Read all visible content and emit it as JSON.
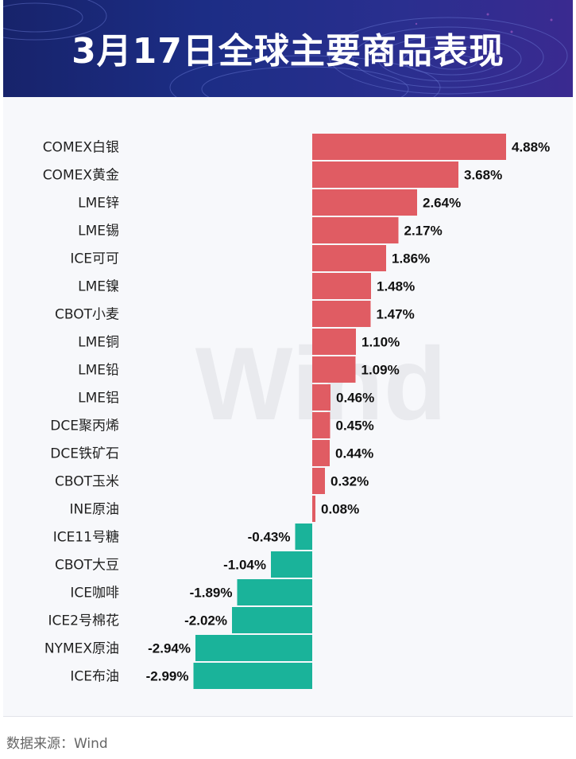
{
  "header": {
    "title": "3月17日全球主要商品表现"
  },
  "watermark": "Wind",
  "source": "数据来源：Wind",
  "colors": {
    "positive": "#e05c63",
    "negative": "#1ab39a",
    "banner": "#1c2d85"
  },
  "chart_data": {
    "type": "bar",
    "orientation": "horizontal",
    "title": "3月17日全球主要商品表现",
    "xlabel": "",
    "ylabel": "",
    "unit": "%",
    "categories": [
      "COMEX白银",
      "COMEX黄金",
      "LME锌",
      "LME锡",
      "ICE可可",
      "LME镍",
      "CBOT小麦",
      "LME铜",
      "LME铅",
      "LME铝",
      "DCE聚丙烯",
      "DCE铁矿石",
      "CBOT玉米",
      "INE原油",
      "ICE11号糖",
      "CBOT大豆",
      "ICE咖啡",
      "ICE2号棉花",
      "NYMEX原油",
      "ICE布油"
    ],
    "values": [
      4.88,
      3.68,
      2.64,
      2.17,
      1.86,
      1.48,
      1.47,
      1.1,
      1.09,
      0.46,
      0.45,
      0.44,
      0.32,
      0.08,
      -0.43,
      -1.04,
      -1.89,
      -2.02,
      -2.94,
      -2.99
    ],
    "labels": [
      "4.88%",
      "3.68%",
      "2.64%",
      "2.17%",
      "1.86%",
      "1.48%",
      "1.47%",
      "1.10%",
      "1.09%",
      "0.46%",
      "0.45%",
      "0.44%",
      "0.32%",
      "0.08%",
      "-0.43%",
      "-1.04%",
      "-1.89%",
      "-2.02%",
      "-2.94%",
      "-2.99%"
    ],
    "grid": false,
    "legend": "none"
  }
}
